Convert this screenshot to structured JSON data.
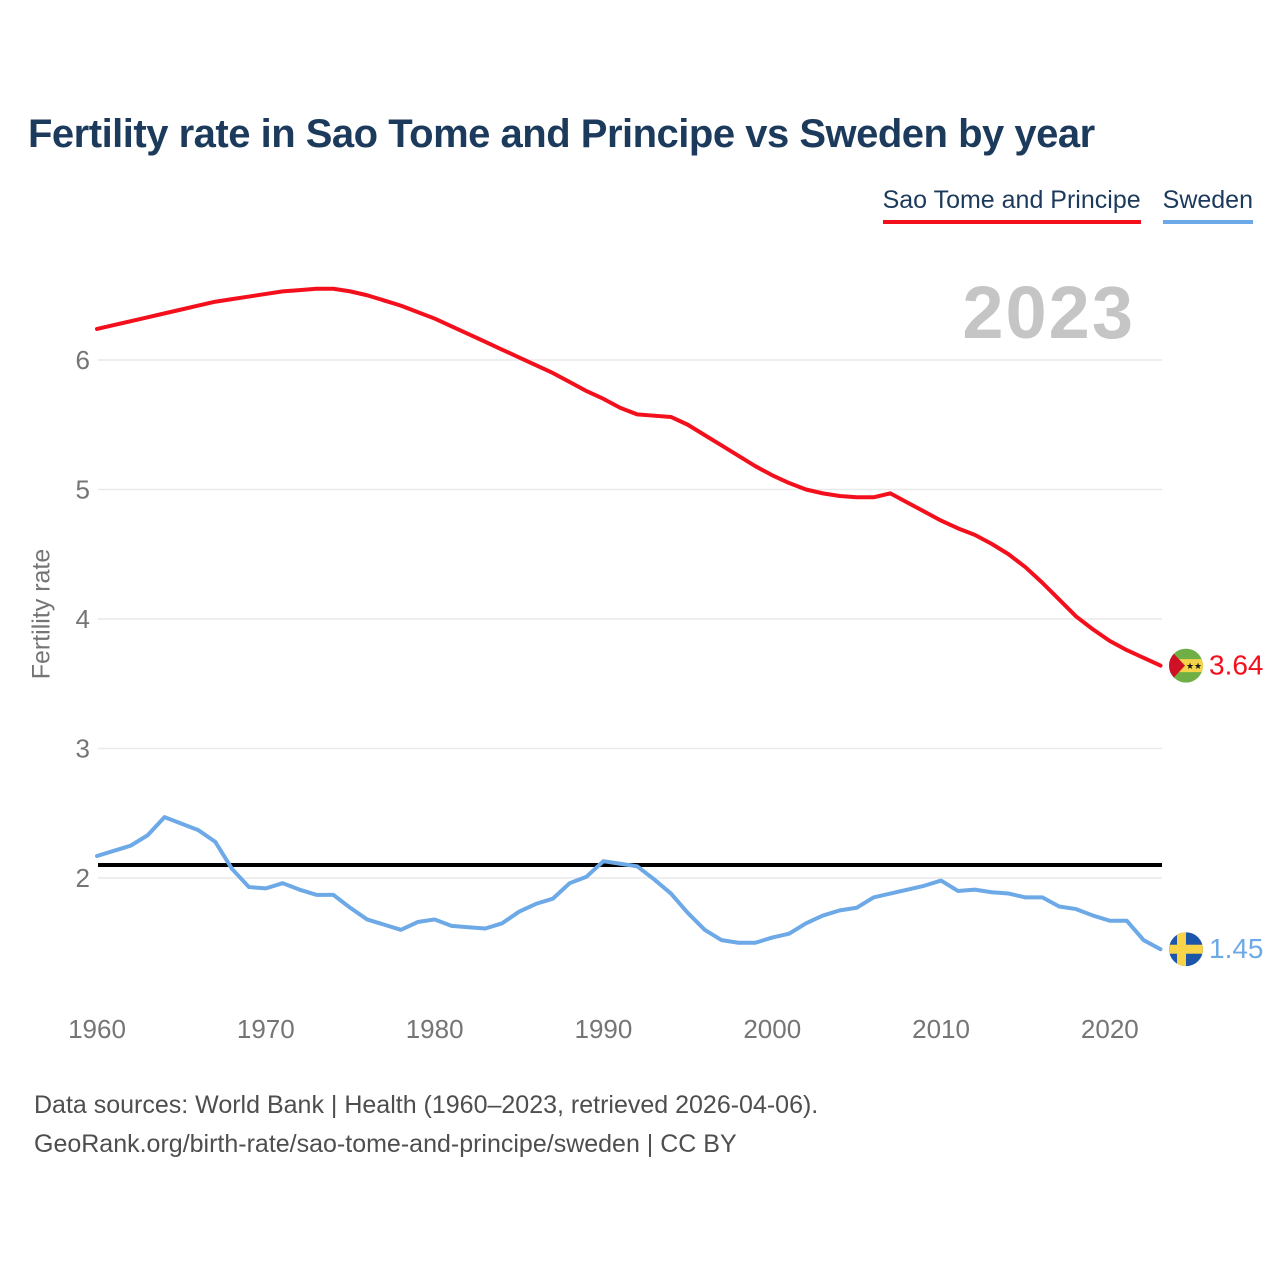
{
  "header": {
    "title": "Fertility rate in Sao Tome and Principe vs Sweden by year"
  },
  "legend": [
    {
      "label": "Sao Tome and Principe",
      "color": "#f3101c"
    },
    {
      "label": "Sweden",
      "color": "#6ca9e6"
    }
  ],
  "watermark": "2023",
  "y_axis_title": "Fertility rate",
  "footer": {
    "line1": "Data sources: World Bank | Health (1960–2023, retrieved 2026-04-06).",
    "line2": "GeoRank.org/birth-rate/sao-tome-and-principe/sweden | CC BY"
  },
  "chart_data": {
    "type": "line",
    "title": "Fertility rate in Sao Tome and Principe vs Sweden by year",
    "xlabel": "",
    "ylabel": "Fertility rate",
    "grid": "horizontal",
    "legend_position": "top-right",
    "x_range": [
      1960,
      2023
    ],
    "y_ticks": [
      2,
      3,
      4,
      5,
      6
    ],
    "x_ticks": [
      1960,
      1970,
      1980,
      1990,
      2000,
      2010,
      2020
    ],
    "reference_line": {
      "value": 2.1,
      "color": "#000000"
    },
    "x": [
      1960,
      1961,
      1962,
      1963,
      1964,
      1965,
      1966,
      1967,
      1968,
      1969,
      1970,
      1971,
      1972,
      1973,
      1974,
      1975,
      1976,
      1977,
      1978,
      1979,
      1980,
      1981,
      1982,
      1983,
      1984,
      1985,
      1986,
      1987,
      1988,
      1989,
      1990,
      1991,
      1992,
      1993,
      1994,
      1995,
      1996,
      1997,
      1998,
      1999,
      2000,
      2001,
      2002,
      2003,
      2004,
      2005,
      2006,
      2007,
      2008,
      2009,
      2010,
      2011,
      2012,
      2013,
      2014,
      2015,
      2016,
      2017,
      2018,
      2019,
      2020,
      2021,
      2022,
      2023
    ],
    "series": [
      {
        "name": "Sao Tome and Principe",
        "color": "#f3101c",
        "flag": "sao-tome-and-principe",
        "end_label": "3.64",
        "end_value": 3.64,
        "values": [
          6.24,
          6.27,
          6.3,
          6.33,
          6.36,
          6.39,
          6.42,
          6.45,
          6.47,
          6.49,
          6.51,
          6.53,
          6.54,
          6.55,
          6.55,
          6.53,
          6.5,
          6.46,
          6.42,
          6.37,
          6.32,
          6.26,
          6.2,
          6.14,
          6.08,
          6.02,
          5.96,
          5.9,
          5.83,
          5.76,
          5.7,
          5.63,
          5.58,
          5.57,
          5.56,
          5.5,
          5.42,
          5.34,
          5.26,
          5.18,
          5.11,
          5.05,
          5.0,
          4.97,
          4.95,
          4.94,
          4.94,
          4.97,
          4.9,
          4.83,
          4.76,
          4.7,
          4.65,
          4.58,
          4.5,
          4.4,
          4.28,
          4.15,
          4.02,
          3.92,
          3.83,
          3.76,
          3.7,
          3.64
        ]
      },
      {
        "name": "Sweden",
        "color": "#6ca9e6",
        "flag": "sweden",
        "end_label": "1.45",
        "end_value": 1.45,
        "values": [
          2.17,
          2.21,
          2.25,
          2.33,
          2.47,
          2.42,
          2.37,
          2.28,
          2.07,
          1.93,
          1.92,
          1.96,
          1.91,
          1.87,
          1.87,
          1.77,
          1.68,
          1.64,
          1.6,
          1.66,
          1.68,
          1.63,
          1.62,
          1.61,
          1.65,
          1.74,
          1.8,
          1.84,
          1.96,
          2.01,
          2.13,
          2.11,
          2.09,
          1.99,
          1.88,
          1.73,
          1.6,
          1.52,
          1.5,
          1.5,
          1.54,
          1.57,
          1.65,
          1.71,
          1.75,
          1.77,
          1.85,
          1.88,
          1.91,
          1.94,
          1.98,
          1.9,
          1.91,
          1.89,
          1.88,
          1.85,
          1.85,
          1.78,
          1.76,
          1.71,
          1.67,
          1.67,
          1.52,
          1.45
        ]
      }
    ],
    "flag_colors": {
      "sao_tome_green": "#6faf46",
      "sao_tome_yellow": "#f6d44a",
      "sao_tome_red": "#cf1126",
      "sao_tome_star": "#1a1a1a",
      "sweden_blue": "#1d56a8",
      "sweden_yellow": "#f9d348"
    }
  }
}
